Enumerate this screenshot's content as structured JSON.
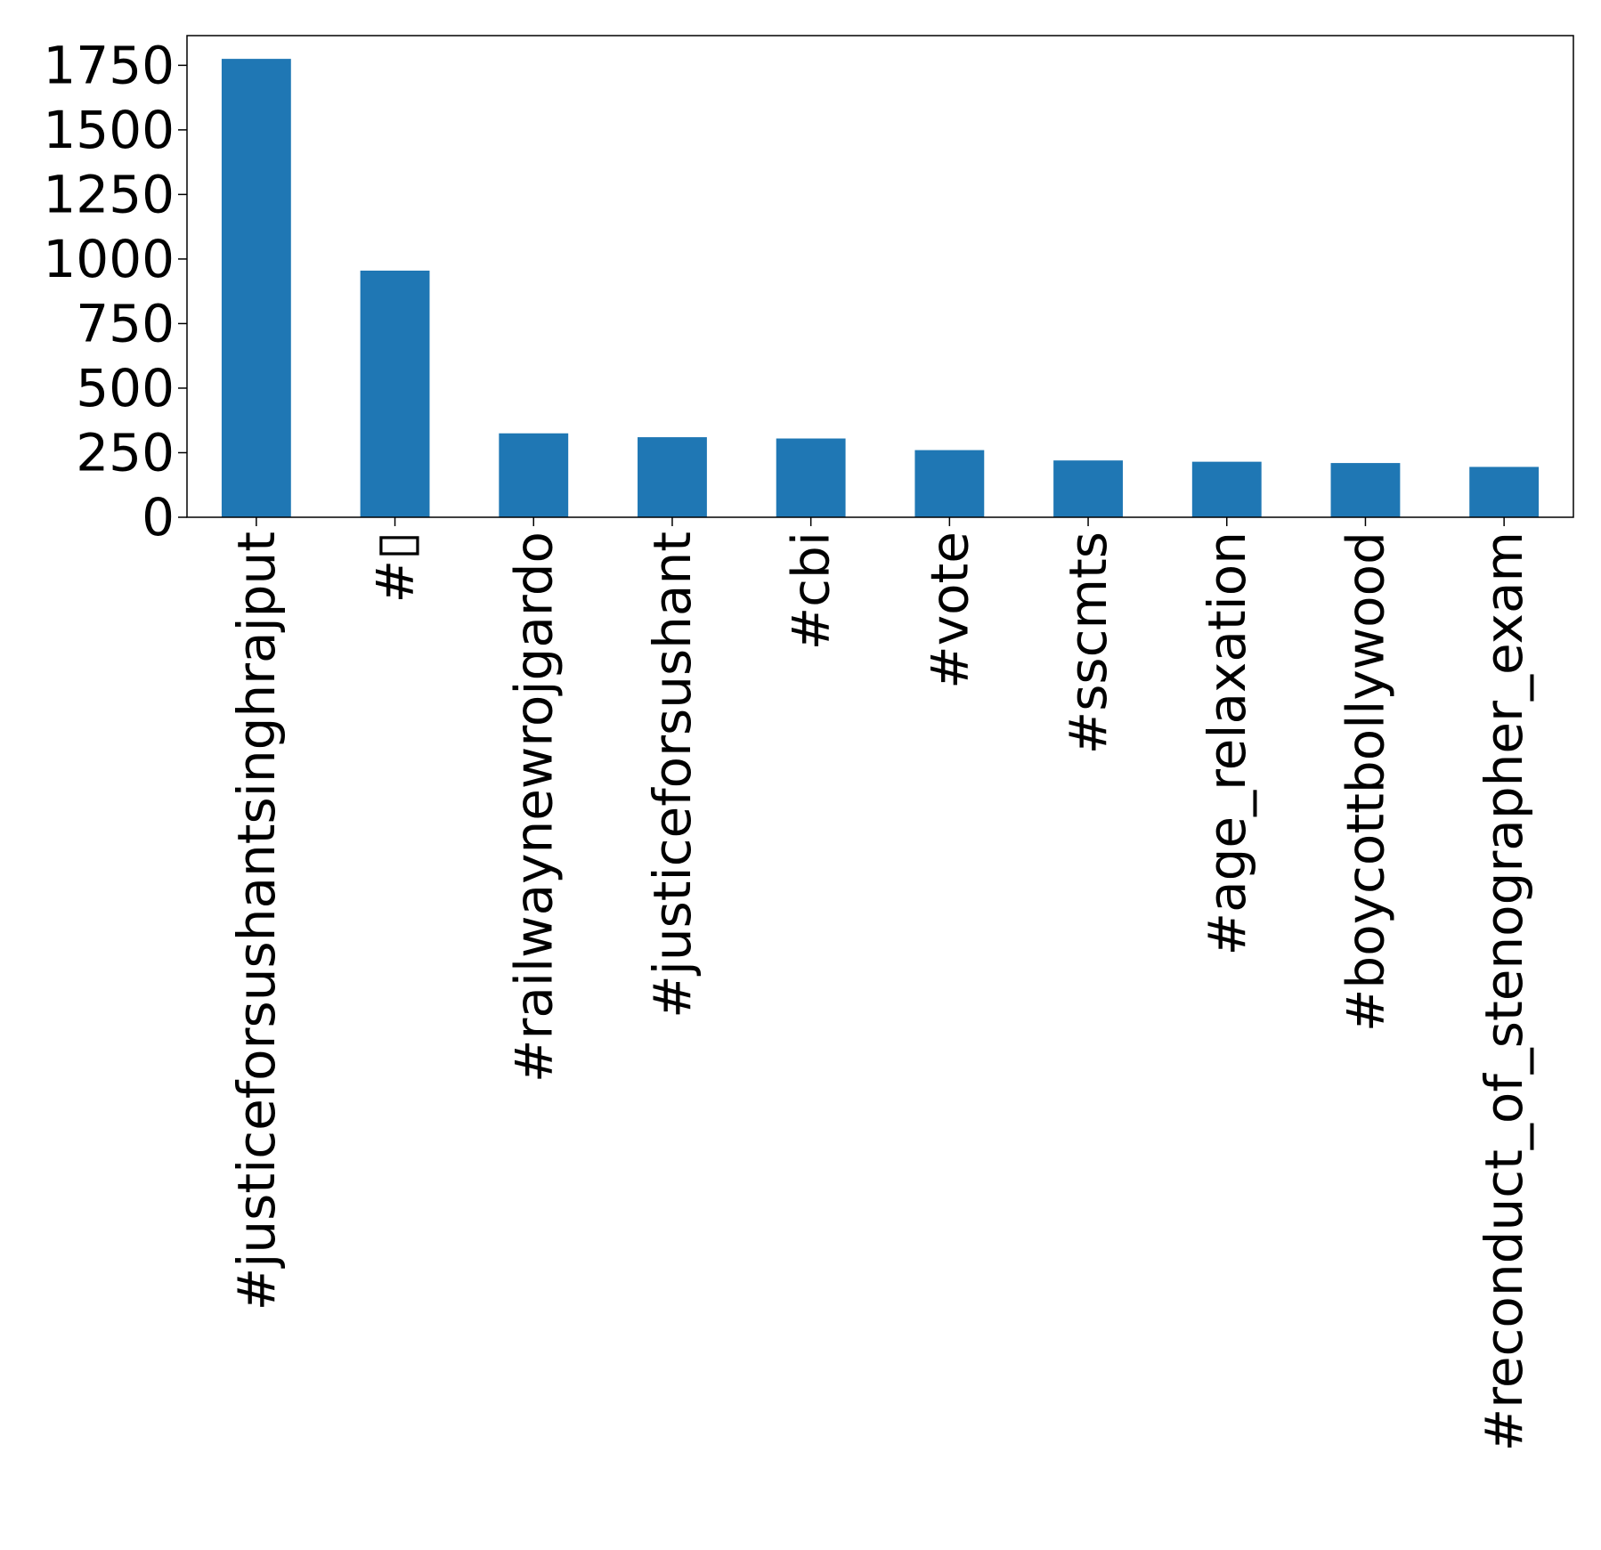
{
  "chart_data": {
    "type": "bar",
    "title": "",
    "xlabel": "",
    "ylabel": "",
    "categories": [
      "#justiceforsushantsinghrajput",
      "#▯",
      "#railwaynewrojgardo",
      "#justiceforsushant",
      "#cbi",
      "#vote",
      "#sscmts",
      "#age_relaxation",
      "#boycottbollywood",
      "#reconduct_of_stenographer_exam"
    ],
    "values": [
      1775,
      955,
      325,
      310,
      305,
      260,
      220,
      215,
      210,
      195
    ],
    "ylim": [
      0,
      1865
    ],
    "yticks": [
      0,
      250,
      500,
      750,
      1000,
      1250,
      1500,
      1750
    ],
    "ytick_labels": [
      "0",
      "250",
      "500",
      "750",
      "1000",
      "1250",
      "1500",
      "1750"
    ],
    "bar_color": "#1f77b4",
    "grid": false,
    "legend": "none"
  }
}
